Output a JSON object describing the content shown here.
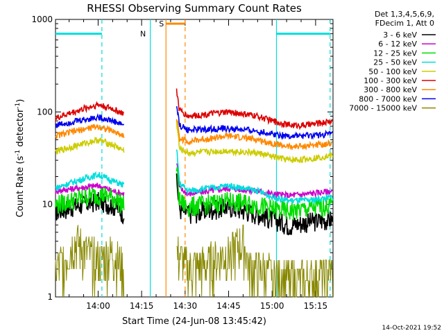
{
  "chart_data": {
    "type": "line",
    "title": "RHESSI Observing Summary Count Rates",
    "xlabel": "Start Time (24-Jun-08 13:45:42)",
    "ylabel_main": "Count Rate (s",
    "ylabel_sup1": "-1",
    "ylabel_mid": " detector",
    "ylabel_sup2": "-1",
    "ylabel_end": ")",
    "yscale": "log",
    "ylim": [
      1,
      1000
    ],
    "xlim_minutes": [
      -14.7,
      81
    ],
    "x_ticks": [
      {
        "t": 0,
        "label": "14:00"
      },
      {
        "t": 15,
        "label": "14:15"
      },
      {
        "t": 30,
        "label": "14:30"
      },
      {
        "t": 45,
        "label": "14:45"
      },
      {
        "t": 60,
        "label": "15:00"
      },
      {
        "t": 75,
        "label": "15:15"
      }
    ],
    "y_ticks": [
      {
        "v": 1,
        "label": "1"
      },
      {
        "v": 10,
        "label": "10"
      },
      {
        "v": 100,
        "label": "100"
      },
      {
        "v": 1000,
        "label": "1000"
      }
    ],
    "legend_header": [
      "Det 1,3,4,5,6,9,",
      "FDecim 1, Att 0"
    ],
    "legend_placement": "right",
    "timestamp": "14-Oct-2021 19:52",
    "series": [
      {
        "name": "3 - 6 keV",
        "color": "#000000",
        "points": [
          [
            -14.7,
            8.5
          ],
          [
            0,
            11
          ],
          [
            5,
            10
          ],
          [
            9,
            8
          ],
          [
            18.2,
            0
          ],
          [
            26.5,
            0
          ],
          [
            27,
            18
          ],
          [
            28,
            9
          ],
          [
            31,
            8
          ],
          [
            45,
            9.5
          ],
          [
            55,
            8
          ],
          [
            60,
            7
          ],
          [
            66,
            6
          ],
          [
            72,
            6.5
          ],
          [
            81,
            7
          ]
        ]
      },
      {
        "name": "6 - 12 keV",
        "color": "#cc00cc",
        "points": [
          [
            -14.7,
            14
          ],
          [
            0,
            16
          ],
          [
            5,
            14
          ],
          [
            9,
            13
          ],
          [
            18.2,
            0
          ],
          [
            26.5,
            0
          ],
          [
            27,
            30
          ],
          [
            28,
            15
          ],
          [
            31,
            13
          ],
          [
            45,
            15
          ],
          [
            55,
            14
          ],
          [
            60,
            13
          ],
          [
            66,
            12.5
          ],
          [
            72,
            13
          ],
          [
            81,
            14
          ]
        ]
      },
      {
        "name": "12 - 25 keV",
        "color": "#00dd00",
        "points": [
          [
            -14.7,
            10
          ],
          [
            0,
            13
          ],
          [
            5,
            12
          ],
          [
            9,
            10
          ],
          [
            18.2,
            0
          ],
          [
            26.5,
            0
          ],
          [
            27,
            25
          ],
          [
            28,
            11
          ],
          [
            31,
            9.5
          ],
          [
            45,
            11
          ],
          [
            55,
            10
          ],
          [
            60,
            9
          ],
          [
            66,
            8.5
          ],
          [
            72,
            9
          ],
          [
            81,
            10
          ]
        ]
      },
      {
        "name": "25 - 50 keV",
        "color": "#00dddd",
        "points": [
          [
            -14.7,
            15
          ],
          [
            0,
            21
          ],
          [
            5,
            18
          ],
          [
            9,
            16
          ],
          [
            18.2,
            0
          ],
          [
            26.5,
            0
          ],
          [
            27,
            40
          ],
          [
            28,
            17
          ],
          [
            31,
            14
          ],
          [
            45,
            16
          ],
          [
            55,
            14
          ],
          [
            60,
            12
          ],
          [
            66,
            11
          ],
          [
            72,
            11
          ],
          [
            81,
            12
          ]
        ]
      },
      {
        "name": "50 - 100 keV",
        "color": "#cccc00",
        "points": [
          [
            -14.7,
            37
          ],
          [
            0,
            50
          ],
          [
            5,
            44
          ],
          [
            9,
            38
          ],
          [
            18.2,
            0
          ],
          [
            26.5,
            0
          ],
          [
            27,
            80
          ],
          [
            28,
            40
          ],
          [
            31,
            36
          ],
          [
            45,
            38
          ],
          [
            55,
            36
          ],
          [
            60,
            33
          ],
          [
            66,
            30
          ],
          [
            72,
            31
          ],
          [
            81,
            34
          ]
        ]
      },
      {
        "name": "100 - 300 keV",
        "color": "#dd0000",
        "points": [
          [
            -14.7,
            85
          ],
          [
            0,
            120
          ],
          [
            5,
            108
          ],
          [
            9,
            95
          ],
          [
            18.2,
            0
          ],
          [
            26.5,
            0
          ],
          [
            27,
            170
          ],
          [
            28,
            105
          ],
          [
            31,
            90
          ],
          [
            45,
            100
          ],
          [
            55,
            90
          ],
          [
            60,
            80
          ],
          [
            66,
            72
          ],
          [
            72,
            72
          ],
          [
            81,
            80
          ]
        ]
      },
      {
        "name": "300 - 800 keV",
        "color": "#ff8800",
        "points": [
          [
            -14.7,
            55
          ],
          [
            0,
            70
          ],
          [
            5,
            62
          ],
          [
            9,
            55
          ],
          [
            18.2,
            0
          ],
          [
            26.5,
            0
          ],
          [
            27,
            90
          ],
          [
            28,
            52
          ],
          [
            31,
            48
          ],
          [
            45,
            55
          ],
          [
            55,
            50
          ],
          [
            60,
            46
          ],
          [
            66,
            42
          ],
          [
            72,
            43
          ],
          [
            81,
            46
          ]
        ]
      },
      {
        "name": "800 - 7000 keV",
        "color": "#0000ee",
        "points": [
          [
            -14.7,
            72
          ],
          [
            0,
            88
          ],
          [
            5,
            80
          ],
          [
            9,
            72
          ],
          [
            18.2,
            0
          ],
          [
            26.5,
            0
          ],
          [
            27,
            120
          ],
          [
            28,
            72
          ],
          [
            31,
            64
          ],
          [
            45,
            66
          ],
          [
            55,
            62
          ],
          [
            60,
            58
          ],
          [
            66,
            55
          ],
          [
            72,
            55
          ],
          [
            81,
            58
          ]
        ]
      },
      {
        "name": "7000 - 15000 keV",
        "color": "#888800",
        "points": [
          [
            -14.7,
            2
          ],
          [
            -12,
            2.5
          ],
          [
            -8,
            4
          ],
          [
            -4,
            3
          ],
          [
            0,
            2.5
          ],
          [
            5,
            3
          ],
          [
            9,
            2
          ],
          [
            18.2,
            0
          ],
          [
            26.5,
            0
          ],
          [
            27,
            3
          ],
          [
            31,
            2
          ],
          [
            40,
            2.5
          ],
          [
            45,
            3
          ],
          [
            50,
            4
          ],
          [
            52,
            2
          ],
          [
            60,
            1.8
          ],
          [
            70,
            1.5
          ],
          [
            81,
            1.8
          ]
        ]
      }
    ],
    "flags": [
      {
        "label": "N",
        "color": "#00dddd",
        "bar_start": -14.7,
        "bar_end": 1.3,
        "level": 700
      },
      {
        "label": "S",
        "color": "#ff8800",
        "bar_start": 23.4,
        "bar_end": 30.0,
        "level": 900
      },
      {
        "label": "",
        "color": "#00dddd",
        "bar_start": 61.5,
        "bar_end": 80.0,
        "level": 700
      }
    ],
    "vlines": [
      {
        "t": 1.3,
        "color": "#00dddd",
        "style": "dashed"
      },
      {
        "t": 18.0,
        "color": "#00dddd",
        "style": "solid"
      },
      {
        "t": 23.4,
        "color": "#ff8800",
        "style": "solid"
      },
      {
        "t": 30.0,
        "color": "#ff8800",
        "style": "dashed"
      },
      {
        "t": 61.5,
        "color": "#00dddd",
        "style": "solid"
      },
      {
        "t": 80.0,
        "color": "#00dddd",
        "style": "dashed"
      }
    ]
  }
}
